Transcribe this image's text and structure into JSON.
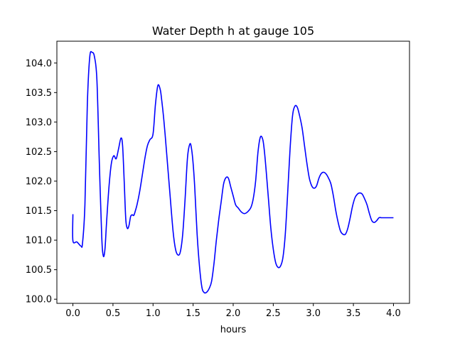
{
  "chart_data": {
    "type": "line",
    "title": "Water Depth h at gauge 105",
    "xlabel": "hours",
    "ylabel": "",
    "xlim": [
      -0.2,
      4.2
    ],
    "ylim": [
      99.93,
      104.37
    ],
    "xticks": [
      0.0,
      0.5,
      1.0,
      1.5,
      2.0,
      2.5,
      3.0,
      3.5,
      4.0
    ],
    "xtick_labels": [
      "0.0",
      "0.5",
      "1.0",
      "1.5",
      "2.0",
      "2.5",
      "3.0",
      "3.5",
      "4.0"
    ],
    "yticks": [
      100.0,
      100.5,
      101.0,
      101.5,
      102.0,
      102.5,
      103.0,
      103.5,
      104.0
    ],
    "ytick_labels": [
      "100.0",
      "100.5",
      "101.0",
      "101.5",
      "102.0",
      "102.5",
      "103.0",
      "103.5",
      "104.0"
    ],
    "grid": false,
    "series": [
      {
        "name": "",
        "color": "#0000ff",
        "x": [
          0.0,
          0.0,
          0.05,
          0.1,
          0.12,
          0.15,
          0.18,
          0.21,
          0.24,
          0.27,
          0.3,
          0.33,
          0.36,
          0.38,
          0.4,
          0.42,
          0.45,
          0.48,
          0.51,
          0.54,
          0.57,
          0.6,
          0.62,
          0.64,
          0.66,
          0.68,
          0.7,
          0.72,
          0.74,
          0.76,
          0.78,
          0.8,
          0.83,
          0.86,
          0.9,
          0.93,
          0.96,
          1.0,
          1.03,
          1.06,
          1.09,
          1.11,
          1.13,
          1.15,
          1.18,
          1.21,
          1.25,
          1.28,
          1.31,
          1.34,
          1.37,
          1.4,
          1.43,
          1.46,
          1.48,
          1.5,
          1.52,
          1.55,
          1.58,
          1.61,
          1.64,
          1.67,
          1.7,
          1.73,
          1.76,
          1.79,
          1.82,
          1.85,
          1.88,
          1.91,
          1.94,
          1.97,
          2.0,
          2.03,
          2.06,
          2.1,
          2.14,
          2.18,
          2.22,
          2.25,
          2.28,
          2.31,
          2.34,
          2.37,
          2.39,
          2.41,
          2.44,
          2.47,
          2.5,
          2.53,
          2.56,
          2.59,
          2.62,
          2.65,
          2.68,
          2.71,
          2.74,
          2.77,
          2.8,
          2.83,
          2.86,
          2.89,
          2.92,
          2.95,
          2.98,
          3.01,
          3.04,
          3.07,
          3.1,
          3.13,
          3.16,
          3.19,
          3.22,
          3.25,
          3.28,
          3.31,
          3.34,
          3.37,
          3.4,
          3.43,
          3.46,
          3.49,
          3.52,
          3.55,
          3.58,
          3.61,
          3.64,
          3.67,
          3.7,
          3.73,
          3.76,
          3.79,
          3.82,
          3.85,
          3.88,
          3.91,
          3.94,
          3.97,
          4.0
        ],
        "y": [
          101.44,
          100.99,
          100.97,
          100.9,
          100.95,
          101.6,
          103.3,
          104.1,
          104.18,
          104.1,
          103.7,
          102.3,
          101.05,
          100.73,
          100.85,
          101.3,
          101.9,
          102.3,
          102.43,
          102.38,
          102.55,
          102.73,
          102.6,
          102.0,
          101.35,
          101.2,
          101.25,
          101.4,
          101.43,
          101.42,
          101.5,
          101.6,
          101.8,
          102.05,
          102.4,
          102.6,
          102.7,
          102.8,
          103.3,
          103.62,
          103.55,
          103.35,
          103.1,
          102.8,
          102.3,
          101.8,
          101.15,
          100.85,
          100.75,
          100.8,
          101.1,
          101.7,
          102.4,
          102.63,
          102.55,
          102.3,
          101.9,
          101.1,
          100.55,
          100.2,
          100.11,
          100.12,
          100.18,
          100.3,
          100.6,
          101.0,
          101.35,
          101.65,
          101.95,
          102.06,
          102.05,
          101.9,
          101.75,
          101.6,
          101.55,
          101.48,
          101.45,
          101.48,
          101.55,
          101.7,
          102.0,
          102.5,
          102.75,
          102.7,
          102.5,
          102.2,
          101.7,
          101.2,
          100.85,
          100.62,
          100.54,
          100.56,
          100.7,
          101.1,
          101.8,
          102.55,
          103.1,
          103.27,
          103.25,
          103.1,
          102.9,
          102.6,
          102.3,
          102.05,
          101.92,
          101.88,
          101.92,
          102.05,
          102.13,
          102.15,
          102.12,
          102.05,
          101.95,
          101.75,
          101.5,
          101.3,
          101.15,
          101.1,
          101.1,
          101.2,
          101.38,
          101.58,
          101.72,
          101.78,
          101.8,
          101.78,
          101.7,
          101.6,
          101.45,
          101.33,
          101.3,
          101.33,
          101.38,
          101.38,
          101.38,
          101.38,
          101.38,
          101.38,
          101.38
        ]
      }
    ]
  }
}
